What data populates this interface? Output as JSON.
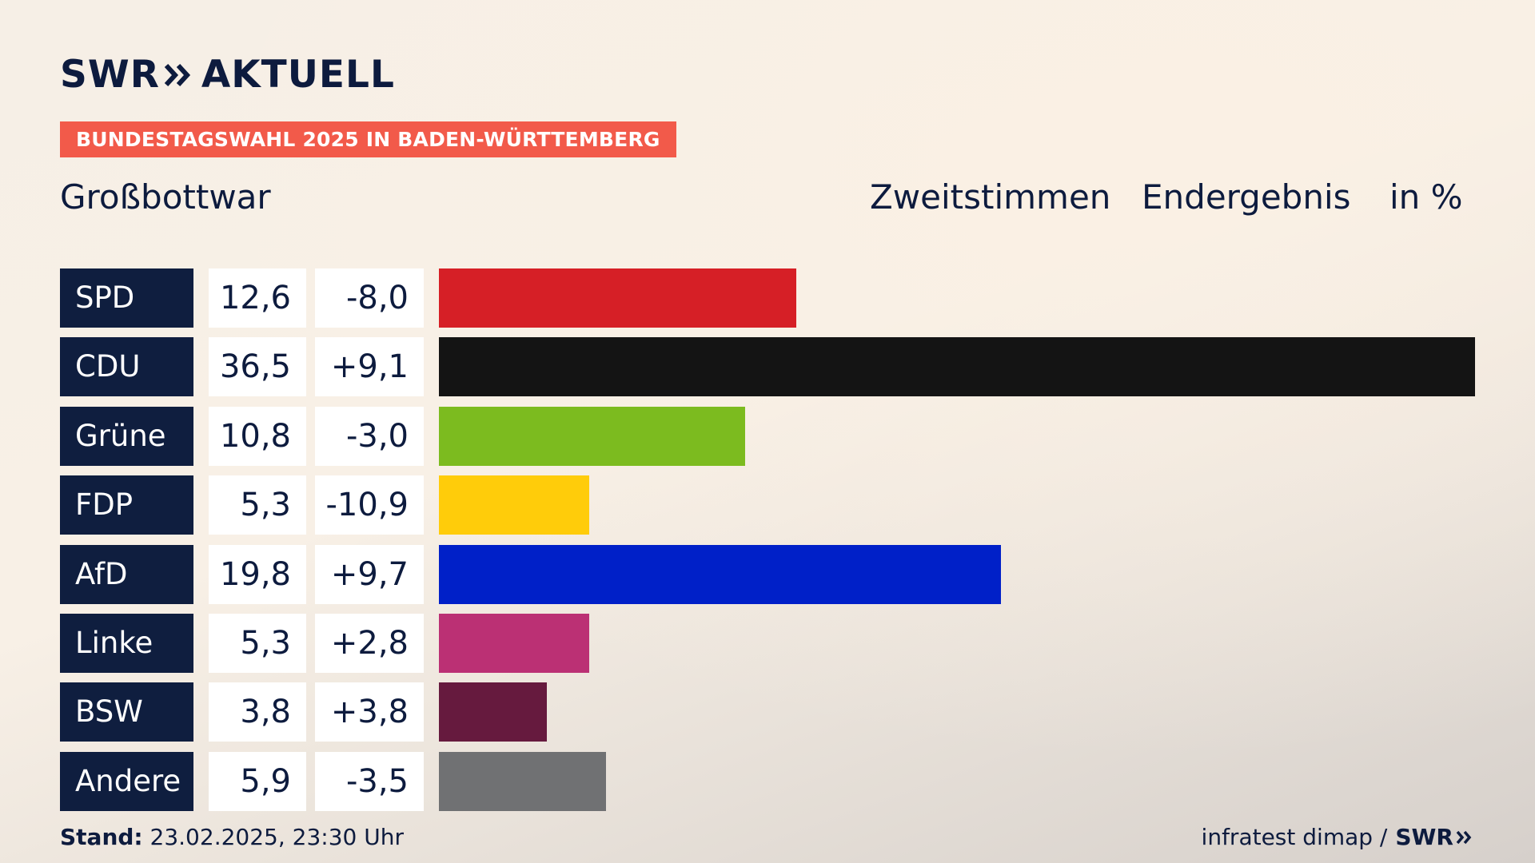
{
  "brand": {
    "logo_left": "SWR",
    "logo_right": "AKTUELL",
    "source_logo": "SWR",
    "chevron_icon": "double-chevron-right-icon"
  },
  "banner": {
    "text": "BUNDESTAGSWAHL 2025 IN BADEN-WÜRTTEMBERG",
    "color": "#f25a4a"
  },
  "place": "Großbottwar",
  "header": {
    "vote_type": "Zweitstimmen",
    "result_type": "Endergebnis",
    "unit": "in %"
  },
  "footer": {
    "stand_label": "Stand:",
    "stand_value": "23.02.2025, 23:30 Uhr",
    "source": "infratest dimap /"
  },
  "chart_data": {
    "type": "bar",
    "orientation": "horizontal",
    "categories": [
      "SPD",
      "CDU",
      "Grüne",
      "FDP",
      "AfD",
      "Linke",
      "BSW",
      "Andere"
    ],
    "values": [
      12.6,
      36.5,
      10.8,
      5.3,
      19.8,
      5.3,
      3.8,
      5.9
    ],
    "value_labels": [
      "12,6",
      "36,5",
      "10,8",
      "5,3",
      "19,8",
      "5,3",
      "3,8",
      "5,9"
    ],
    "change_labels": [
      "-8,0",
      "+9,1",
      "-3,0",
      "-10,9",
      "+9,7",
      "+2,8",
      "+3,8",
      "-3,5"
    ],
    "changes": [
      -8.0,
      9.1,
      -3.0,
      -10.9,
      9.7,
      2.8,
      3.8,
      -3.5
    ],
    "colors": [
      "#d61f26",
      "#141414",
      "#7cbb1f",
      "#ffcc0a",
      "#0020c8",
      "#bb3074",
      "#661a3e",
      "#707173"
    ],
    "xlim": [
      0,
      36.5
    ]
  }
}
